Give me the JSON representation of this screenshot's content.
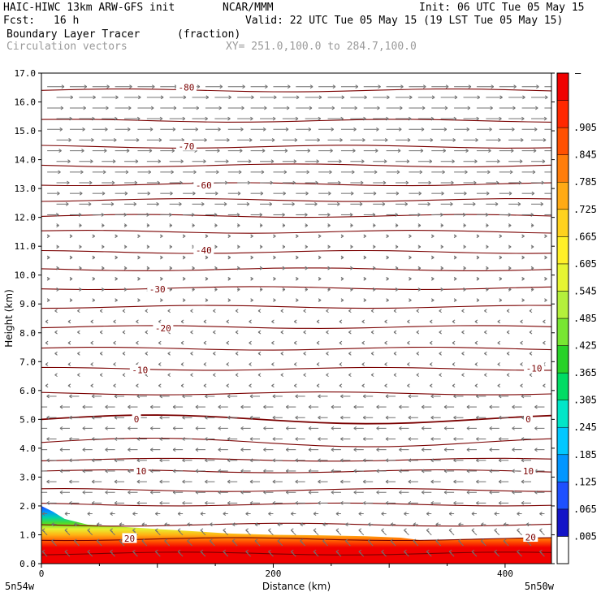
{
  "header": {
    "model": "HAIC-HIWC 13km ARW-GFS init",
    "org": "NCAR/MMM",
    "init": "Init: 06 UTC Tue 05 May 15",
    "fcst_label": "Fcst:",
    "fcst_value": "16 h",
    "valid": "Valid: 22 UTC Tue 05 May 15 (19 LST Tue 05 May 15)",
    "field_name": "Boundary Layer Tracer",
    "field_units": "(fraction)",
    "vectors_label": "Circulation vectors",
    "xy_range": "XY= 251.0,100.0 to 284.7,100.0"
  },
  "chart_data": {
    "type": "heatmap",
    "xlabel": "Distance (km)",
    "ylabel": "Height (km)",
    "xlim": [
      0,
      440
    ],
    "ylim": [
      0,
      17
    ],
    "x_ticks": [
      0,
      200,
      400
    ],
    "y_ticks": [
      0,
      1,
      2,
      3,
      4,
      5,
      6,
      7,
      8,
      9,
      10,
      11,
      12,
      13,
      14,
      15,
      16,
      17
    ],
    "y_tick_labels": [
      "0.0",
      "1.0",
      "2.0",
      "3.0",
      "4.0",
      "5.0",
      "6.0",
      "7.0",
      "8.0",
      "9.0",
      "10.0",
      "11.0",
      "12.0",
      "13.0",
      "14.0",
      "15.0",
      "16.0",
      "17.0"
    ],
    "x_end_labels": [
      "5n54w",
      "5n50w"
    ],
    "colorbar": {
      "labels": [
        ".005",
        ".065",
        ".125",
        ".185",
        ".245",
        ".305",
        ".365",
        ".425",
        ".485",
        ".545",
        ".605",
        ".665",
        ".725",
        ".785",
        ".845",
        ".905"
      ],
      "top_label": "–",
      "colors": [
        "#ffffff",
        "#1414c8",
        "#1e50ff",
        "#0096ff",
        "#00c8ff",
        "#00e6c8",
        "#00dc64",
        "#28d228",
        "#78e632",
        "#b4f03c",
        "#e6f532",
        "#fff028",
        "#ffd21e",
        "#ffaa14",
        "#ff7d0a",
        "#ff5000",
        "#ff2800",
        "#f00000"
      ]
    },
    "isotherm_labels": [
      {
        "text": "-80",
        "x": 125,
        "y": 16.5
      },
      {
        "text": "-70",
        "x": 125,
        "y": 14.45
      },
      {
        "text": "-60",
        "x": 140,
        "y": 13.1
      },
      {
        "text": "-40",
        "x": 140,
        "y": 10.85
      },
      {
        "text": "-30",
        "x": 100,
        "y": 9.5
      },
      {
        "text": "-20",
        "x": 105,
        "y": 8.15
      },
      {
        "text": "-10",
        "x": 85,
        "y": 6.7
      },
      {
        "text": "-10",
        "x": 425,
        "y": 6.75
      },
      {
        "text": "0",
        "x": 82,
        "y": 4.99
      },
      {
        "text": "0",
        "x": 420,
        "y": 4.99
      },
      {
        "text": "10",
        "x": 86,
        "y": 3.2
      },
      {
        "text": "10",
        "x": 420,
        "y": 3.2
      },
      {
        "text": "20",
        "x": 76,
        "y": 0.86
      },
      {
        "text": "20",
        "x": 422,
        "y": 0.9
      }
    ],
    "tracer_top_km": [
      {
        "x": 0,
        "y": 2.0
      },
      {
        "x": 10,
        "y": 1.8
      },
      {
        "x": 20,
        "y": 1.55
      },
      {
        "x": 40,
        "y": 1.35
      },
      {
        "x": 80,
        "y": 1.25
      },
      {
        "x": 120,
        "y": 1.15
      },
      {
        "x": 160,
        "y": 1.05
      },
      {
        "x": 200,
        "y": 1.0
      },
      {
        "x": 240,
        "y": 0.98
      },
      {
        "x": 280,
        "y": 0.95
      },
      {
        "x": 310,
        "y": 0.9
      },
      {
        "x": 330,
        "y": 0.8
      },
      {
        "x": 360,
        "y": 0.85
      },
      {
        "x": 400,
        "y": 0.88
      },
      {
        "x": 440,
        "y": 0.9
      }
    ]
  }
}
